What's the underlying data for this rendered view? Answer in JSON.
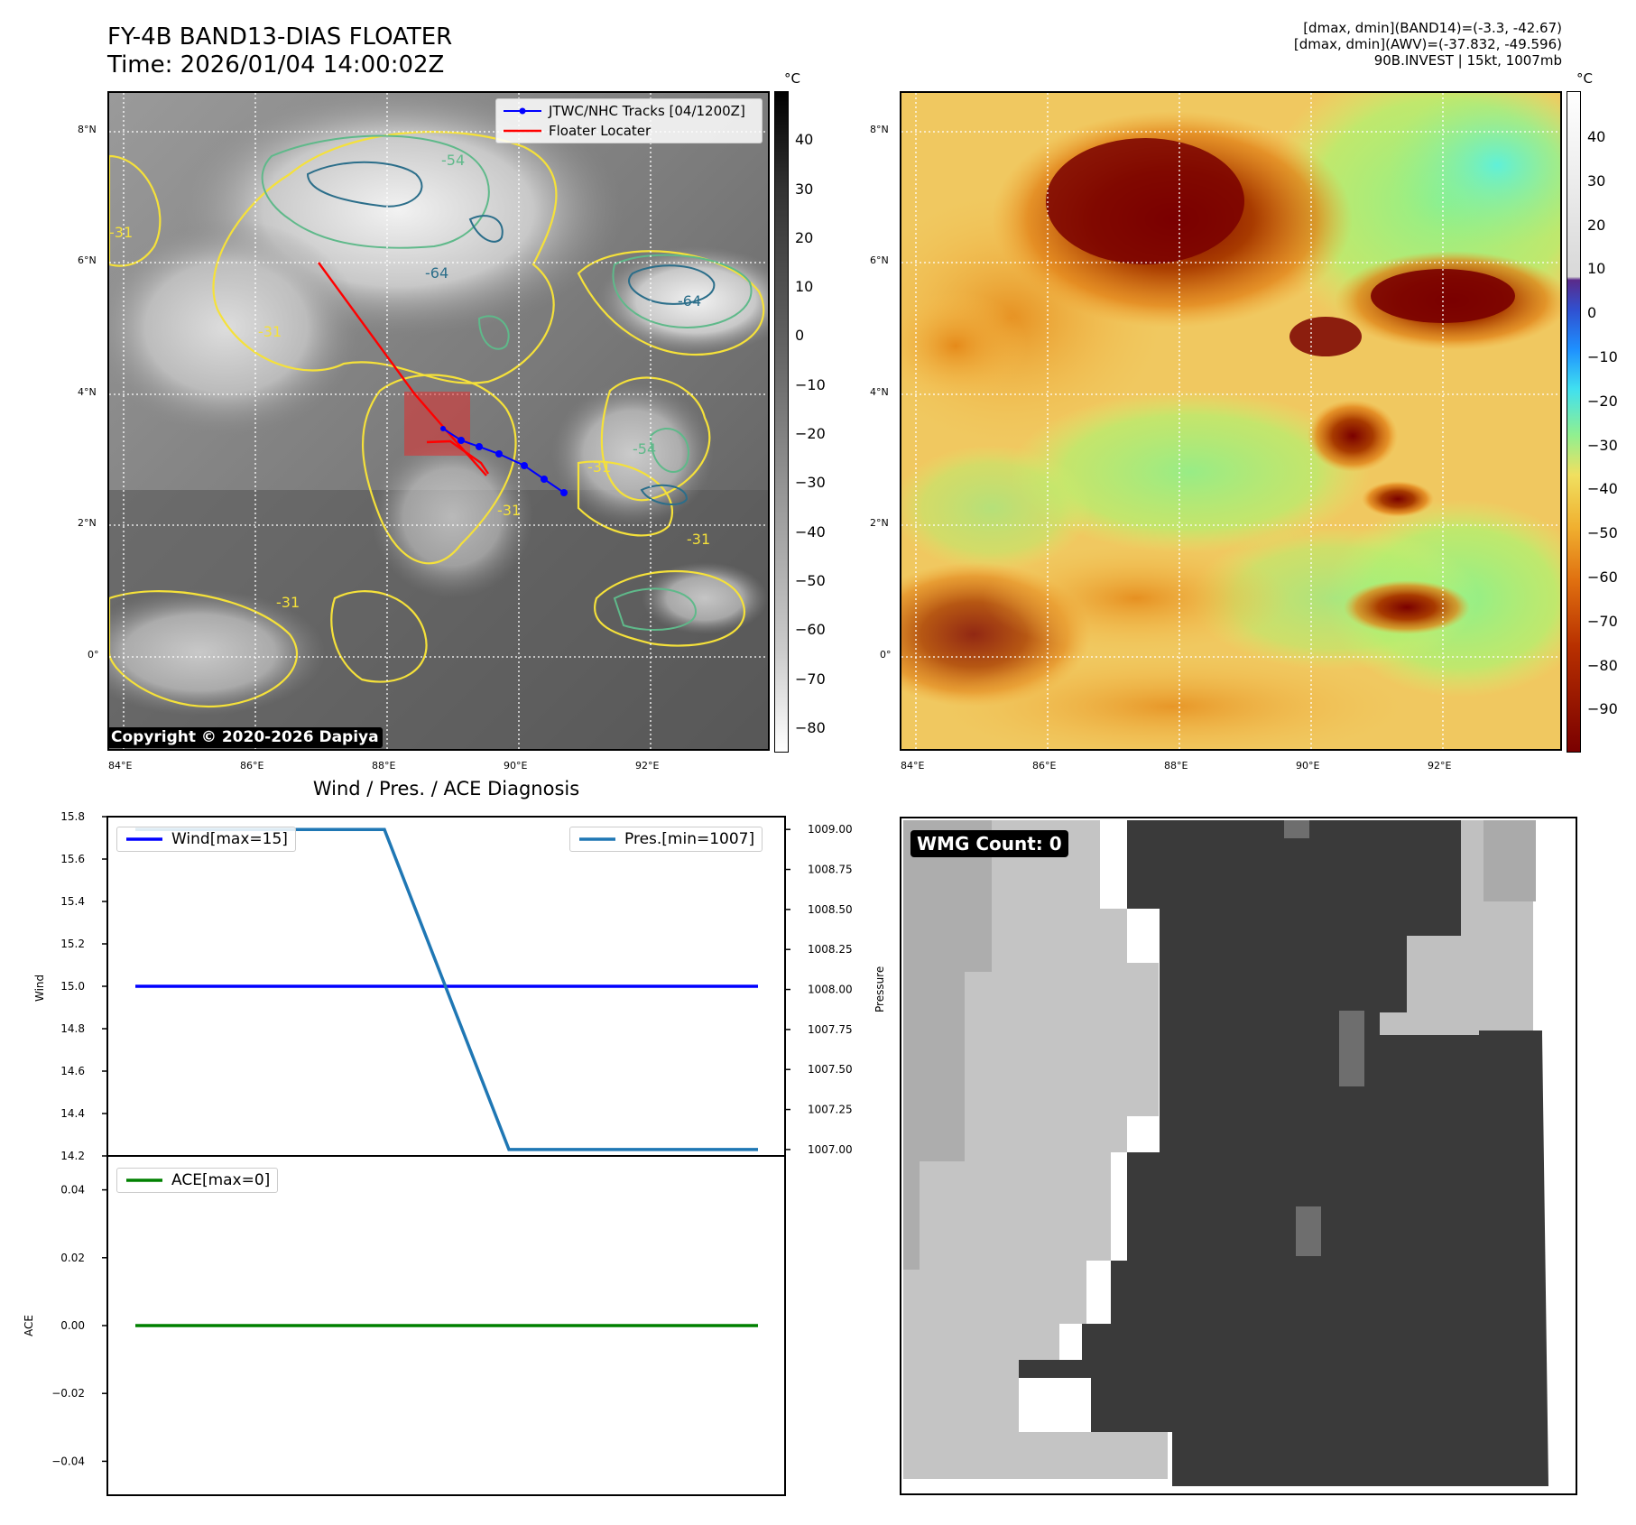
{
  "header": {
    "title_line1": "FY-4B BAND13-DIAS FLOATER",
    "title_line2": "Time: 2026/01/04 14:00:02Z",
    "stats_line1": "[dmax, dmin](BAND14)=(-3.3, -42.67)",
    "stats_line2": "[dmax, dmin](AWV)=(-37.832, -49.596)",
    "stats_line3": "90B.INVEST | 15kt, 1007mb"
  },
  "map": {
    "lon_ticks": [
      "84°E",
      "86°E",
      "88°E",
      "90°E",
      "92°E"
    ],
    "lat_ticks": [
      "8°N",
      "6°N",
      "4°N",
      "2°N",
      "0°"
    ],
    "copyright": "Copyright © 2020-2026 Dapiya",
    "legend_tracks": "JTWC/NHC Tracks [04/1200Z]",
    "legend_floater": "Floater Locater",
    "contour_labels": [
      "-31",
      "-54",
      "-64"
    ],
    "colors": {
      "track": "#0000ff",
      "floater": "#ff0000",
      "contour_31": "#f5e13a",
      "contour_54": "#5fb98a",
      "contour_64": "#2b6e8a"
    }
  },
  "colorbar_gray": {
    "unit": "°C",
    "ticks": [
      "40",
      "30",
      "20",
      "10",
      "0",
      "−10",
      "−20",
      "−30",
      "−40",
      "−50",
      "−60",
      "−70",
      "−80"
    ]
  },
  "colorbar_awv": {
    "unit": "°C",
    "ticks": [
      "40",
      "30",
      "20",
      "10",
      "0",
      "−10",
      "−20",
      "−30",
      "−40",
      "−50",
      "−60",
      "−70",
      "−80",
      "−90"
    ]
  },
  "diagnosis": {
    "title": "Wind / Pres. / ACE Diagnosis",
    "wind_label": "Wind",
    "pressure_label": "Pressure",
    "ace_label": "ACE",
    "legend_wind": "Wind[max=15]",
    "legend_pres": "Pres.[min=1007]",
    "legend_ace": "ACE[max=0]",
    "wind_ticks": [
      "15.8",
      "15.6",
      "15.4",
      "15.2",
      "15.0",
      "14.8",
      "14.6",
      "14.4",
      "14.2"
    ],
    "pres_ticks": [
      "1009.00",
      "1008.75",
      "1008.50",
      "1008.25",
      "1008.00",
      "1007.75",
      "1007.50",
      "1007.25",
      "1007.00"
    ],
    "ace_ticks": [
      "0.04",
      "0.02",
      "0.00",
      "−0.02",
      "−0.04"
    ],
    "colors": {
      "wind": "#0000ff",
      "pres": "#1f77b4",
      "ace": "#008000"
    }
  },
  "wmg": {
    "label": "WMG Count: 0"
  },
  "chart_data": [
    {
      "type": "line",
      "title": "Wind / Pres. / ACE Diagnosis",
      "ylabel": "Wind",
      "ylim": [
        14.2,
        15.8
      ],
      "series": [
        {
          "name": "Wind[max=15]",
          "x": [
            0,
            1,
            2,
            3,
            4,
            5
          ],
          "values": [
            15,
            15,
            15,
            15,
            15,
            15
          ]
        }
      ]
    },
    {
      "type": "line",
      "ylabel": "Pressure",
      "ylim": [
        1006.96,
        1009.08
      ],
      "series": [
        {
          "name": "Pres.[min=1007]",
          "x": [
            0,
            1,
            2,
            3,
            4,
            5
          ],
          "values": [
            1009,
            1009,
            1009,
            1007,
            1007,
            1007
          ]
        }
      ]
    },
    {
      "type": "line",
      "ylabel": "ACE",
      "ylim": [
        -0.05,
        0.05
      ],
      "series": [
        {
          "name": "ACE[max=0]",
          "x": [
            0,
            1,
            2,
            3,
            4,
            5
          ],
          "values": [
            0,
            0,
            0,
            0,
            0,
            0
          ]
        }
      ]
    }
  ]
}
